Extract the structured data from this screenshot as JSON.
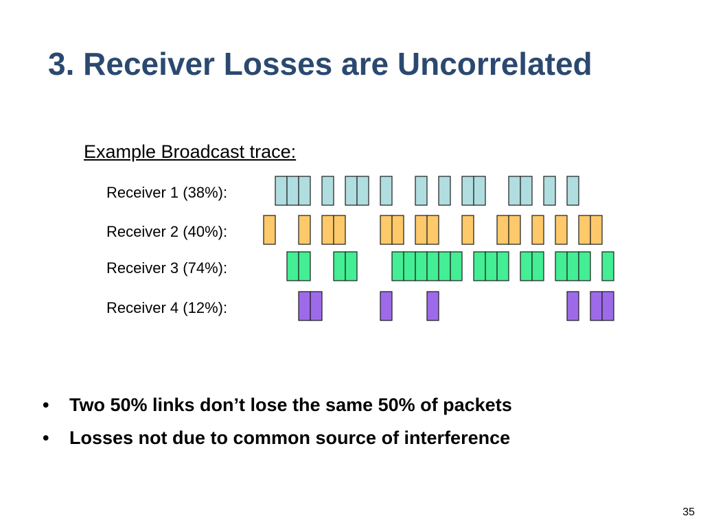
{
  "slide": {
    "title": "3. Receiver Losses are Uncorrelated",
    "trace_heading": "Example Broadcast trace:",
    "slide_number": "35"
  },
  "receivers": [
    {
      "label": "Receiver 1 (38%):",
      "color": "#b0dde0",
      "slots": [
        1,
        2,
        3,
        5,
        7,
        8,
        10,
        13,
        15,
        17,
        18,
        21,
        22,
        24,
        26
      ]
    },
    {
      "label": "Receiver 2 (40%):",
      "color": "#fdc96a",
      "slots": [
        0,
        3,
        5,
        6,
        10,
        11,
        13,
        14,
        17,
        20,
        21,
        23,
        25,
        27,
        28
      ]
    },
    {
      "label": "Receiver 3 (74%):",
      "color": "#44ee94",
      "slots": [
        2,
        3,
        6,
        7,
        11,
        12,
        13,
        14,
        15,
        16,
        18,
        19,
        20,
        22,
        23,
        25,
        26,
        27,
        29
      ]
    },
    {
      "label": "Receiver 4 (12%):",
      "color": "#9d6be9",
      "slots": [
        3,
        4,
        10,
        14,
        26,
        28,
        29
      ]
    }
  ],
  "bullets": [
    {
      "marker": "•",
      "text": "Two 50% links don’t lose the same 50% of packets"
    },
    {
      "marker": "•",
      "text": "Losses not due to common source of interference"
    }
  ]
}
